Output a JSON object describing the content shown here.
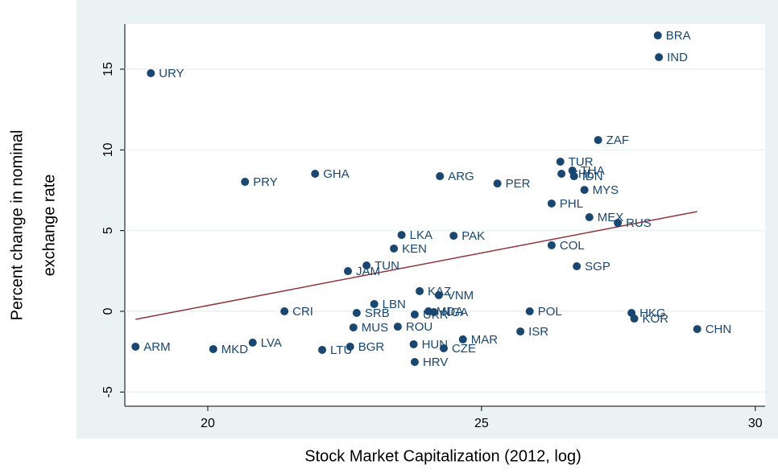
{
  "chart_data": {
    "type": "scatter",
    "xlabel": "Stock Market Capitalization (2012, log)",
    "ylabel": [
      "Percent change in nominal",
      "exchange rate"
    ],
    "xlim": [
      18.485,
      30.18
    ],
    "ylim": [
      -5.88,
      17.79
    ],
    "xticks": [
      20,
      25,
      30
    ],
    "yticks": [
      -5,
      0,
      5,
      10,
      15
    ],
    "grid": true,
    "series": [
      {
        "color": "#1a476f",
        "labels": [
          "BRA",
          "IND",
          "URY",
          "ZAF",
          "TUR",
          "CHL",
          "THA",
          "IDN",
          "MYS",
          "PRY",
          "GHA",
          "ARG",
          "PER",
          "PHL",
          "MEX",
          "RUS",
          "LKA",
          "PAK",
          "KEN",
          "COL",
          "TUN",
          "SGP",
          "JAM",
          "KAZ",
          "VNM",
          "LBN",
          "CRI",
          "SRB",
          "MDA",
          "NGA",
          "UKR",
          "POL",
          "HKG",
          "KOR",
          "CHN",
          "MUS",
          "ROU",
          "ISR",
          "MAR",
          "ARM",
          "MKD",
          "LVA",
          "LTU",
          "BGR",
          "HUN",
          "CZE",
          "HRV"
        ],
        "x": [
          28.22,
          28.24,
          18.96,
          27.13,
          26.44,
          26.46,
          26.66,
          26.69,
          26.88,
          20.68,
          21.96,
          24.24,
          25.29,
          26.28,
          26.97,
          27.49,
          23.54,
          24.49,
          23.4,
          26.28,
          22.9,
          26.74,
          22.56,
          23.87,
          24.22,
          23.04,
          21.4,
          22.72,
          24.03,
          24.13,
          23.78,
          25.88,
          27.74,
          27.79,
          28.94,
          22.66,
          23.47,
          25.71,
          24.66,
          18.68,
          20.1,
          20.82,
          22.09,
          22.6,
          23.76,
          24.31,
          23.78
        ],
        "y": [
          17.09,
          15.74,
          14.75,
          10.61,
          9.27,
          8.52,
          8.72,
          8.37,
          7.52,
          8.02,
          8.52,
          8.37,
          7.92,
          6.68,
          5.83,
          5.48,
          4.73,
          4.68,
          3.89,
          4.09,
          2.84,
          2.79,
          2.49,
          1.25,
          1.0,
          0.45,
          0.0,
          -0.1,
          0.0,
          -0.05,
          -0.2,
          0.0,
          -0.1,
          -0.45,
          -1.1,
          -1.0,
          -0.95,
          -1.25,
          -1.74,
          -2.19,
          -2.34,
          -1.94,
          -2.39,
          -2.19,
          -2.04,
          -2.29,
          -3.14
        ]
      }
    ],
    "fit": {
      "color": "#90353b",
      "x": [
        18.68,
        28.94
      ],
      "y": [
        -0.5,
        6.18
      ]
    }
  }
}
